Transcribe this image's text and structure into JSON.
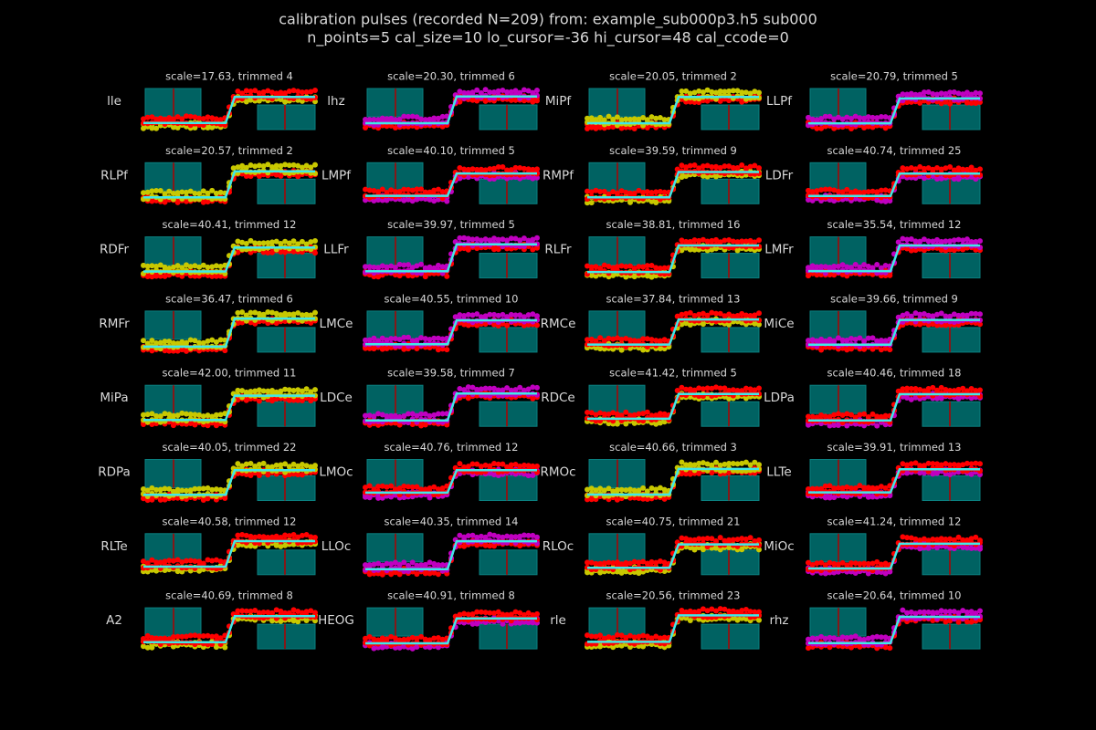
{
  "chart_data": {
    "type": "calibration-grid",
    "title": "calibration pulses (recorded N=209) from: example_sub000p3.h5 sub000",
    "subtitle": "n_points=5 cal_size=10 lo_cursor=-36 hi_cursor=48 cal_ccode=0",
    "panels": [
      {
        "label": "lle",
        "title": "scale=17.63, trimmed 4",
        "dot_colors": [
          "#c8c800",
          "#ff0000"
        ]
      },
      {
        "label": "lhz",
        "title": "scale=20.30, trimmed 6",
        "dot_colors": [
          "#ff0000",
          "#c000c0"
        ]
      },
      {
        "label": "MiPf",
        "title": "scale=20.05, trimmed 2",
        "dot_colors": [
          "#ff0000",
          "#c8c800"
        ]
      },
      {
        "label": "LLPf",
        "title": "scale=20.79, trimmed 5",
        "dot_colors": [
          "#ff0000",
          "#c000c0"
        ]
      },
      {
        "label": "RLPf",
        "title": "scale=20.57, trimmed 2",
        "dot_colors": [
          "#ff0000",
          "#c8c800"
        ]
      },
      {
        "label": "LMPf",
        "title": "scale=40.10, trimmed 5",
        "dot_colors": [
          "#c000c0",
          "#ff0000"
        ]
      },
      {
        "label": "RMPf",
        "title": "scale=39.59, trimmed 9",
        "dot_colors": [
          "#c8c800",
          "#ff0000"
        ]
      },
      {
        "label": "LDFr",
        "title": "scale=40.74, trimmed 25",
        "dot_colors": [
          "#c000c0",
          "#ff0000"
        ]
      },
      {
        "label": "RDFr",
        "title": "scale=40.41, trimmed 12",
        "dot_colors": [
          "#ff0000",
          "#c8c800"
        ]
      },
      {
        "label": "LLFr",
        "title": "scale=39.97, trimmed 5",
        "dot_colors": [
          "#ff0000",
          "#c000c0"
        ]
      },
      {
        "label": "RLFr",
        "title": "scale=38.81, trimmed 16",
        "dot_colors": [
          "#c8c800",
          "#ff0000"
        ]
      },
      {
        "label": "LMFr",
        "title": "scale=35.54, trimmed 12",
        "dot_colors": [
          "#ff0000",
          "#c000c0"
        ]
      },
      {
        "label": "RMFr",
        "title": "scale=36.47, trimmed 6",
        "dot_colors": [
          "#ff0000",
          "#c8c800"
        ]
      },
      {
        "label": "LMCe",
        "title": "scale=40.55, trimmed 10",
        "dot_colors": [
          "#ff0000",
          "#c000c0"
        ]
      },
      {
        "label": "RMCe",
        "title": "scale=37.84, trimmed 13",
        "dot_colors": [
          "#c8c800",
          "#ff0000"
        ]
      },
      {
        "label": "MiCe",
        "title": "scale=39.66, trimmed 9",
        "dot_colors": [
          "#ff0000",
          "#c000c0"
        ]
      },
      {
        "label": "MiPa",
        "title": "scale=42.00, trimmed 11",
        "dot_colors": [
          "#ff0000",
          "#c8c800"
        ]
      },
      {
        "label": "LDCe",
        "title": "scale=39.58, trimmed 7",
        "dot_colors": [
          "#ff0000",
          "#c000c0"
        ]
      },
      {
        "label": "RDCe",
        "title": "scale=41.42, trimmed 5",
        "dot_colors": [
          "#c8c800",
          "#ff0000"
        ]
      },
      {
        "label": "LDPa",
        "title": "scale=40.46, trimmed 18",
        "dot_colors": [
          "#c000c0",
          "#ff0000"
        ]
      },
      {
        "label": "RDPa",
        "title": "scale=40.05, trimmed 22",
        "dot_colors": [
          "#ff0000",
          "#c8c800"
        ]
      },
      {
        "label": "LMOc",
        "title": "scale=40.76, trimmed 12",
        "dot_colors": [
          "#c000c0",
          "#ff0000"
        ]
      },
      {
        "label": "RMOc",
        "title": "scale=40.66, trimmed 3",
        "dot_colors": [
          "#ff0000",
          "#c8c800"
        ]
      },
      {
        "label": "LLTe",
        "title": "scale=39.91, trimmed 13",
        "dot_colors": [
          "#c000c0",
          "#ff0000"
        ]
      },
      {
        "label": "RLTe",
        "title": "scale=40.58, trimmed 12",
        "dot_colors": [
          "#c8c800",
          "#ff0000"
        ]
      },
      {
        "label": "LLOc",
        "title": "scale=40.35, trimmed 14",
        "dot_colors": [
          "#ff0000",
          "#c000c0"
        ]
      },
      {
        "label": "RLOc",
        "title": "scale=40.75, trimmed 21",
        "dot_colors": [
          "#c8c800",
          "#ff0000"
        ]
      },
      {
        "label": "MiOc",
        "title": "scale=41.24, trimmed 12",
        "dot_colors": [
          "#c000c0",
          "#ff0000"
        ]
      },
      {
        "label": "A2",
        "title": "scale=40.69, trimmed 8",
        "dot_colors": [
          "#c8c800",
          "#ff0000"
        ]
      },
      {
        "label": "HEOG",
        "title": "scale=40.91, trimmed 8",
        "dot_colors": [
          "#c000c0",
          "#ff0000"
        ]
      },
      {
        "label": "rle",
        "title": "scale=20.56, trimmed 23",
        "dot_colors": [
          "#c8c800",
          "#ff0000"
        ]
      },
      {
        "label": "rhz",
        "title": "scale=20.64, trimmed 10",
        "dot_colors": [
          "#ff0000",
          "#c000c0"
        ]
      }
    ]
  }
}
